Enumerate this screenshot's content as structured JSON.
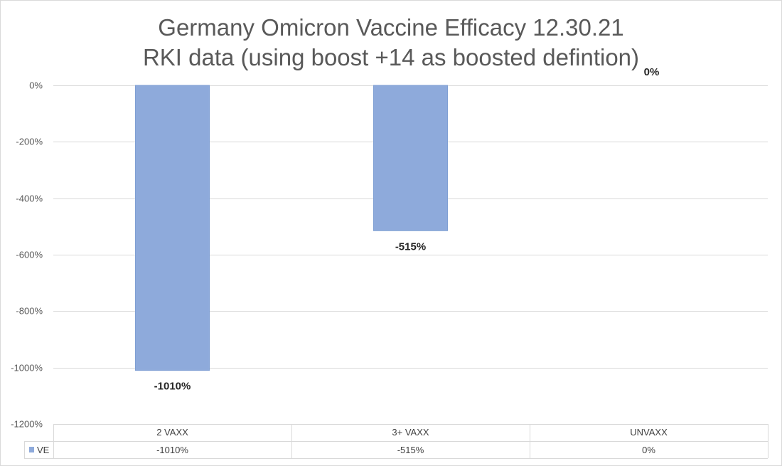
{
  "chart_data": {
    "type": "bar",
    "title": "Germany Omicron Vaccine Efficacy 12.30.21",
    "subtitle": "RKI data (using boost +14 as boosted defintion)",
    "categories": [
      "2 VAXX",
      "3+ VAXX",
      "UNVAXX"
    ],
    "series": [
      {
        "name": "VE",
        "values": [
          -1010,
          -515,
          0
        ],
        "color": "#8eaadb",
        "border_color": "#7f9fd3"
      }
    ],
    "data_labels": [
      "-1010%",
      "-515%",
      "0%"
    ],
    "table_values": [
      "-1010%",
      "-515%",
      "0%"
    ],
    "ylim": [
      -1200,
      0
    ],
    "y_ticks": [
      0,
      -200,
      -400,
      -600,
      -800,
      -1000,
      -1200
    ],
    "y_tick_labels": [
      "0%",
      "-200%",
      "-400%",
      "-600%",
      "-800%",
      "-1000%",
      "-1200%"
    ],
    "grid": true,
    "legend_placement": "data-table",
    "xlabel": "",
    "ylabel": ""
  },
  "colors": {
    "grid": "#d9d9d9",
    "bar": "#8eaadb",
    "text": "#595959"
  }
}
